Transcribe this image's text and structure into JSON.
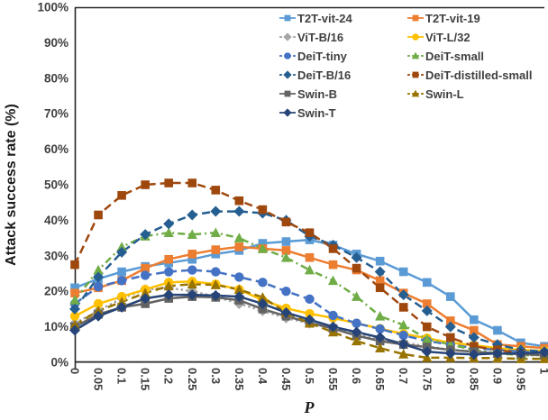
{
  "chart_data": {
    "type": "line",
    "title": "",
    "xlabel": "P",
    "ylabel": "Attack success rate  (%)",
    "grid": false,
    "legend_position": "top-right-inside",
    "xlim": [
      0,
      1
    ],
    "ylim": [
      0,
      100
    ],
    "yticks": [
      0,
      10,
      20,
      30,
      40,
      50,
      60,
      70,
      80,
      90,
      100
    ],
    "ytick_labels": [
      "0%",
      "10%",
      "20%",
      "30%",
      "40%",
      "50%",
      "60%",
      "70%",
      "80%",
      "90%",
      "100%"
    ],
    "x": [
      0,
      0.05,
      0.1,
      0.15,
      0.2,
      0.25,
      0.3,
      0.35,
      0.4,
      0.45,
      0.5,
      0.55,
      0.6,
      0.65,
      0.7,
      0.75,
      0.8,
      0.85,
      0.9,
      0.95,
      1
    ],
    "xtick_labels": [
      "0",
      "0.05",
      "0.1",
      "0.15",
      "0.2",
      "0.25",
      "0.3",
      "0.35",
      "0.4",
      "0.45",
      "0.5",
      "0.55",
      "0.6",
      "0.65",
      "0.7",
      "0.75",
      "0.8",
      "0.85",
      "0.9",
      "0.95",
      "1"
    ],
    "series": [
      {
        "name": "T2T-vit-24",
        "color": "#5B9BD5",
        "marker": "square",
        "line_style": "solid",
        "values": [
          21,
          23.5,
          25.5,
          27,
          28,
          29,
          30.5,
          31.5,
          33.5,
          34,
          34.5,
          33,
          30.5,
          28.5,
          25.5,
          22.5,
          18.5,
          12,
          9,
          5.5,
          4.5
        ]
      },
      {
        "name": "T2T-vit-19",
        "color": "#ED7D31",
        "marker": "square",
        "line_style": "solid",
        "values": [
          19.5,
          21,
          23,
          26.5,
          29,
          30.5,
          31.7,
          32.5,
          32,
          31.5,
          29.5,
          27.5,
          26,
          23,
          19.5,
          16.5,
          11.7,
          9,
          5,
          4.5,
          4
        ]
      },
      {
        "name": "ViT-B/16",
        "color": "#A5A5A5",
        "marker": "diamond",
        "line_style": "dotted",
        "values": [
          11,
          14.5,
          18,
          20.5,
          21,
          20,
          18.5,
          16.5,
          14.5,
          12.5,
          11,
          9.5,
          8,
          6.5,
          5.5,
          4.5,
          3.5,
          3,
          2.5,
          2,
          2
        ]
      },
      {
        "name": "ViT-L/32",
        "color": "#FFC000",
        "marker": "circle",
        "line_style": "solid",
        "values": [
          13,
          16.5,
          18.5,
          20.5,
          22.5,
          22.8,
          22,
          20.5,
          17.5,
          15.2,
          13.7,
          12.5,
          11,
          9.5,
          8,
          6.8,
          5.5,
          4.8,
          4,
          3.5,
          3.2
        ]
      },
      {
        "name": "DeiT-tiny",
        "color": "#4472C4",
        "marker": "circle",
        "line_style": "dashed",
        "values": [
          16.5,
          21.3,
          23,
          24.5,
          25.5,
          26,
          25.5,
          24,
          22.5,
          20,
          17.8,
          13.2,
          11,
          9.4,
          7.6,
          6,
          5,
          4,
          3.5,
          3,
          2.8
        ]
      },
      {
        "name": "DeiT-small",
        "color": "#70AD47",
        "marker": "triangle",
        "line_style": "dash-dot",
        "values": [
          17.5,
          26,
          32.5,
          35.5,
          36.5,
          36,
          36.5,
          35,
          32,
          29.5,
          26,
          23,
          18.5,
          13,
          10.5,
          6.5,
          5,
          3.5,
          2.5,
          2,
          2
        ]
      },
      {
        "name": "DeiT-B/16",
        "color": "#255E91",
        "marker": "diamond",
        "line_style": "dashed",
        "values": [
          15,
          24,
          31,
          36,
          39,
          41.5,
          42.5,
          42.5,
          42,
          40,
          35.5,
          33,
          29.5,
          25.5,
          19,
          14.5,
          10,
          7,
          5,
          3.5,
          3
        ]
      },
      {
        "name": "DeiT-distilled-small",
        "color": "#9E480E",
        "marker": "square",
        "line_style": "dashed",
        "values": [
          27.5,
          41.5,
          47,
          50,
          50.5,
          50.5,
          48.5,
          45.5,
          43,
          39.5,
          36.5,
          32,
          26.5,
          21,
          15.5,
          10,
          7,
          4.5,
          3.5,
          2.5,
          2
        ]
      },
      {
        "name": "Swin-B",
        "color": "#636363",
        "marker": "square",
        "line_style": "solid",
        "values": [
          10,
          13.5,
          15.5,
          16.5,
          18,
          18.5,
          18.3,
          17.5,
          15,
          13,
          11.2,
          9.5,
          7.5,
          6,
          5,
          4.3,
          3.5,
          3,
          2.5,
          2.3,
          2
        ]
      },
      {
        "name": "Swin-L",
        "color": "#997300",
        "marker": "triangle",
        "line_style": "dashed",
        "values": [
          10.5,
          14.5,
          17,
          19.5,
          21.5,
          22,
          21.8,
          20.5,
          18.3,
          14,
          11,
          8.5,
          6,
          4,
          2.3,
          1.3,
          1.3,
          1.2,
          1.2,
          1,
          1
        ]
      },
      {
        "name": "Swin-T",
        "color": "#264478",
        "marker": "diamond",
        "line_style": "solid",
        "values": [
          9,
          13,
          15.5,
          18,
          19,
          19,
          18.8,
          18.5,
          16.5,
          14,
          12,
          10,
          8.5,
          7,
          5.1,
          3,
          2.5,
          2.2,
          2.5,
          2.5,
          2.8
        ]
      }
    ]
  }
}
